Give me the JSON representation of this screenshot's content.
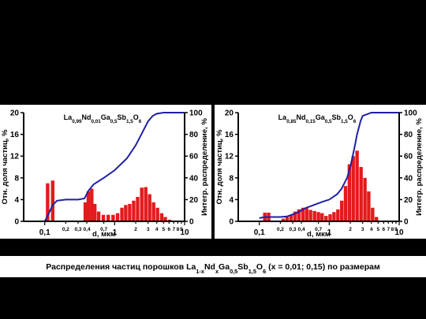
{
  "chart_data": [
    {
      "type": "bar",
      "title_parts": [
        "La",
        "0,99",
        "Nd",
        "0,01",
        "Ga",
        "0,5",
        "Sb",
        "1,5",
        "O",
        "6"
      ],
      "xlabel": "d, мкм",
      "ylabel": "Отн. доля частиц, %",
      "y2label": "Интегр. распределение, %",
      "xscale": "log",
      "xlim": [
        0.05,
        10
      ],
      "xticks": [
        {
          "value": 0.1,
          "label": "0,1"
        },
        {
          "value": 0.2,
          "label": "0,2"
        },
        {
          "value": 0.3,
          "label": "0,3"
        },
        {
          "value": 0.4,
          "label": "0,4"
        },
        {
          "value": 0.7,
          "label": "0,7"
        },
        1,
        2,
        3,
        4,
        5,
        6,
        7,
        8,
        9,
        10
      ],
      "ylim": [
        0,
        20
      ],
      "yticks": [
        0,
        4,
        8,
        12,
        16,
        20
      ],
      "y2lim": [
        0,
        100
      ],
      "y2ticks": [
        0,
        20,
        40,
        60,
        80,
        100
      ],
      "series": [
        {
          "type": "bar",
          "color": "#e41a1c",
          "x": [
            0.11,
            0.13,
            0.38,
            0.42,
            0.47,
            0.52,
            0.59,
            0.69,
            0.81,
            0.95,
            1.1,
            1.27,
            1.44,
            1.64,
            1.87,
            2.13,
            2.44,
            2.78,
            3.16,
            3.6,
            4.1,
            4.7,
            5.3,
            6.1
          ],
          "values": [
            7,
            7.5,
            3.5,
            5.5,
            6,
            3.2,
            1.8,
            1.2,
            1.2,
            1.2,
            1.5,
            2.5,
            3,
            3.2,
            3.8,
            4.5,
            6.2,
            6.3,
            5,
            3.5,
            2.5,
            1.5,
            0.8,
            0.3
          ]
        },
        {
          "type": "line",
          "axis": "y2",
          "color": "#1f1fa8",
          "x": [
            0.1,
            0.11,
            0.13,
            0.15,
            0.2,
            0.3,
            0.37,
            0.42,
            0.5,
            0.7,
            1,
            1.5,
            2,
            2.5,
            3,
            3.5,
            4,
            5,
            10
          ],
          "values": [
            0,
            5,
            15,
            19,
            20,
            20,
            21,
            28,
            34,
            40,
            47,
            58,
            70,
            82,
            92,
            97,
            99,
            100,
            100
          ]
        }
      ]
    },
    {
      "type": "bar",
      "title_parts": [
        "La",
        "0,85",
        "Nd",
        "0,15",
        "Ga",
        "0,5",
        "Sb",
        "1,5",
        "O",
        "6"
      ],
      "xlabel": "d, мкм",
      "ylabel": "Отн. доля частиц, %",
      "y2label": "Интегр. распределение, %",
      "xscale": "log",
      "xlim": [
        0.05,
        10
      ],
      "xticks": [
        {
          "value": 0.1,
          "label": "0,1"
        },
        {
          "value": 0.2,
          "label": "0,2"
        },
        {
          "value": 0.3,
          "label": "0,3"
        },
        {
          "value": 0.4,
          "label": "0,4"
        },
        {
          "value": 0.7,
          "label": "0,7"
        },
        1,
        2,
        3,
        4,
        5,
        6,
        7,
        8,
        9,
        10
      ],
      "ylim": [
        0,
        20
      ],
      "yticks": [
        0,
        4,
        8,
        12,
        16,
        20
      ],
      "y2lim": [
        0,
        100
      ],
      "y2ticks": [
        0,
        20,
        40,
        60,
        80,
        100
      ],
      "series": [
        {
          "type": "bar",
          "color": "#e41a1c",
          "x": [
            0.12,
            0.136,
            0.22,
            0.25,
            0.285,
            0.324,
            0.368,
            0.42,
            0.476,
            0.54,
            0.616,
            0.7,
            0.79,
            0.9,
            1.03,
            1.17,
            1.33,
            1.51,
            1.71,
            1.94,
            2.2,
            2.5,
            2.85,
            3.24,
            3.67,
            4.17,
            4.73
          ],
          "values": [
            1.6,
            1.6,
            0.5,
            0.8,
            1.2,
            1.8,
            2.2,
            2.5,
            2.4,
            2.1,
            1.9,
            1.7,
            1.5,
            1,
            1.3,
            1.7,
            2.2,
            3.8,
            6.5,
            10.5,
            12,
            13,
            10,
            8,
            5.5,
            2.5,
            0.8
          ]
        },
        {
          "type": "line",
          "axis": "y2",
          "color": "#1f1fa8",
          "x": [
            0.1,
            0.12,
            0.14,
            0.2,
            0.25,
            0.35,
            0.45,
            0.6,
            0.8,
            1,
            1.3,
            1.5,
            1.8,
            2,
            2.3,
            2.5,
            2.8,
            3,
            4,
            10
          ],
          "values": [
            3,
            4,
            4,
            4,
            4.5,
            8,
            12,
            15,
            18,
            20,
            25,
            30,
            40,
            50,
            68,
            80,
            92,
            97,
            100,
            100
          ]
        }
      ]
    }
  ],
  "caption_parts": [
    "Распределения частиц порошков La",
    "1-x",
    "Nd",
    "x",
    "Ga",
    "0,5",
    "Sb",
    "1,5",
    "O",
    "6",
    " (x = 0,01; 0,15) по размерам"
  ]
}
